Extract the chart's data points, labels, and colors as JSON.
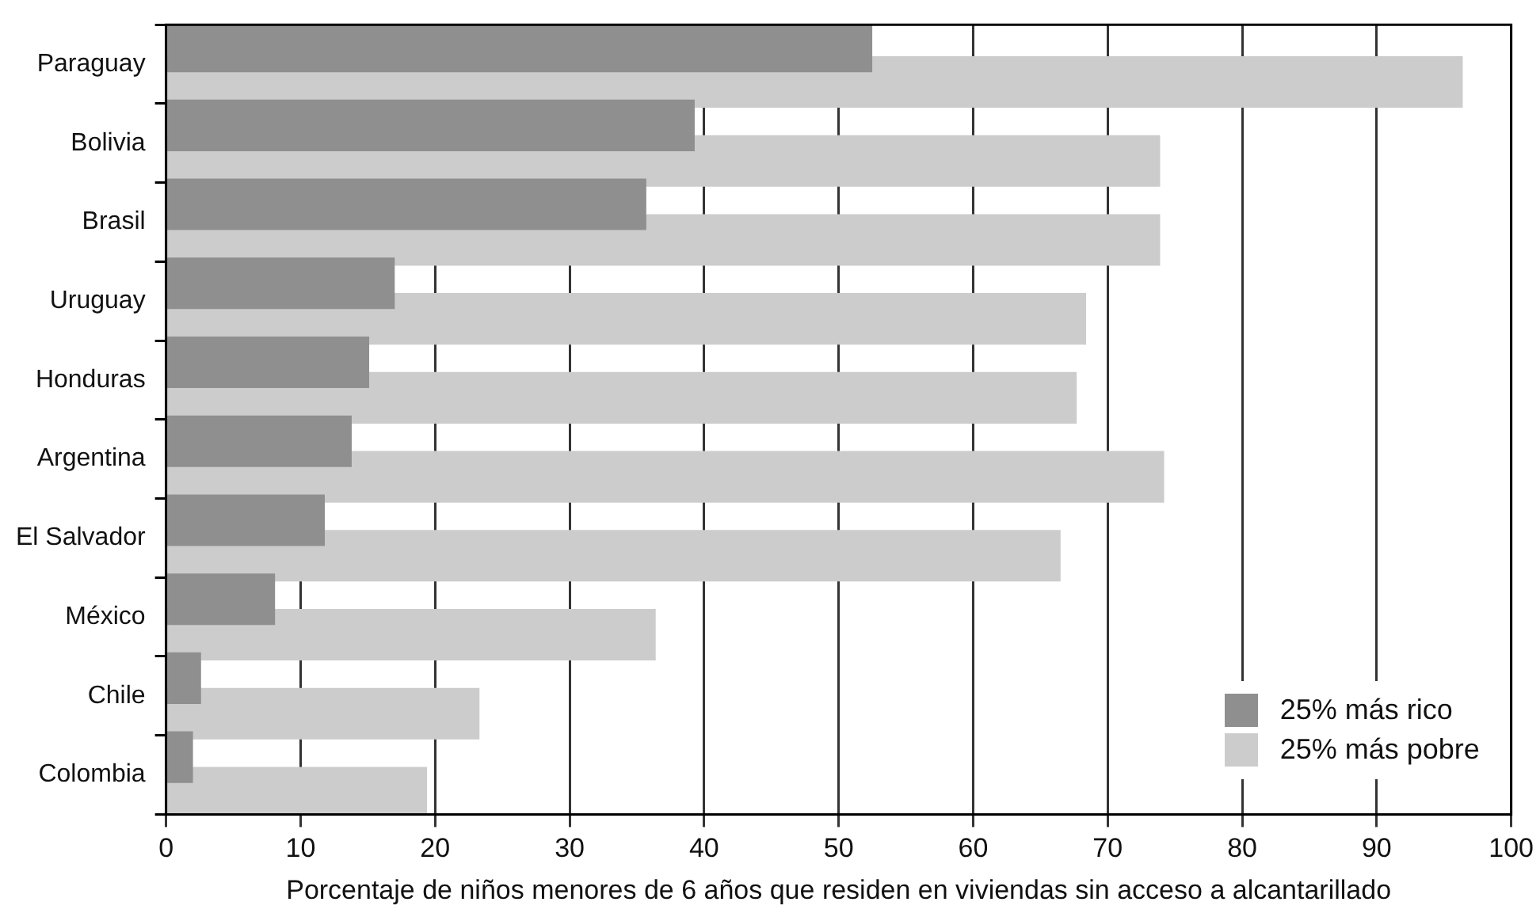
{
  "chart_data": {
    "type": "bar",
    "orientation": "horizontal",
    "categories": [
      "Paraguay",
      "Bolivia",
      "Brasil",
      "Uruguay",
      "Honduras",
      "Argentina",
      "El Salvador",
      "México",
      "Chile",
      "Colombia"
    ],
    "series": [
      {
        "name": "25% más rico",
        "color": "#8f8f8f",
        "values": [
          52.5,
          39.3,
          35.7,
          17.0,
          15.1,
          13.8,
          11.8,
          8.1,
          2.6,
          2.0
        ]
      },
      {
        "name": "25% más pobre",
        "color": "#cccccc",
        "values": [
          96.4,
          73.9,
          73.9,
          68.4,
          67.7,
          74.2,
          66.5,
          36.4,
          23.3,
          19.4
        ]
      }
    ],
    "xlabel": "Porcentaje de niños menores de 6 años que residen en viviendas sin acceso a alcantarillado",
    "xlim": [
      0,
      100
    ],
    "xticks": [
      0,
      10,
      20,
      30,
      40,
      50,
      60,
      70,
      80,
      90,
      100
    ],
    "grid": "x",
    "legend": "bottom right"
  }
}
